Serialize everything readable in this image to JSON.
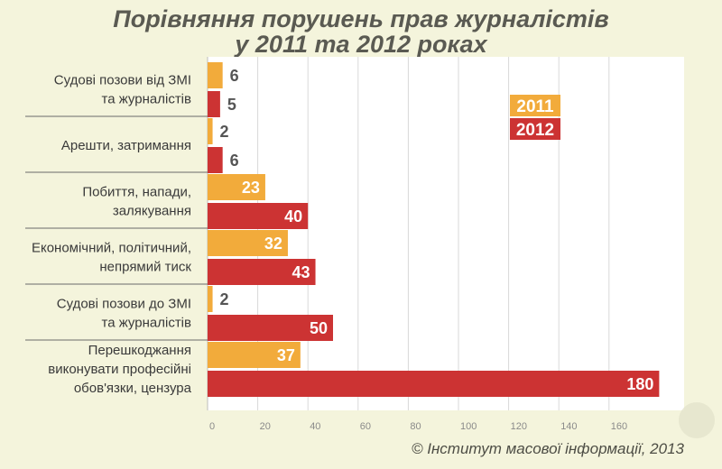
{
  "title_line1": "Порівняння порушень прав журналістів",
  "title_line2": "у 2011 та 2012 роках",
  "credit": "© Інститут масової інформації, 2013",
  "colors": {
    "series_2011": "#f2ab3b",
    "series_2012": "#cc3333",
    "background": "#f4f4dc",
    "plot_background": "#ffffff"
  },
  "chart_data": {
    "type": "bar",
    "orientation": "horizontal",
    "title": "Порівняння порушень прав журналістів у 2011 та 2012 роках",
    "categories": [
      [
        "Судові позови від ЗМІ",
        "та журналістів"
      ],
      [
        "Арешти, затримання"
      ],
      [
        "Побиття, напади,",
        "залякування"
      ],
      [
        "Економічний, політичний,",
        "непрямий тиск"
      ],
      [
        "Судові позови до ЗМІ",
        "та журналістів"
      ],
      [
        "Перешкоджання",
        "виконувати професійні",
        "обов'язки, цензура"
      ]
    ],
    "series": [
      {
        "name": "2011",
        "values": [
          6,
          2,
          23,
          32,
          2,
          37
        ]
      },
      {
        "name": "2012",
        "values": [
          5,
          6,
          40,
          43,
          50,
          180
        ]
      }
    ],
    "xlim": [
      0,
      180
    ],
    "xticks": [
      0,
      20,
      40,
      60,
      80,
      100,
      120,
      140,
      160
    ],
    "grid": true,
    "legend_position": "top-right"
  }
}
